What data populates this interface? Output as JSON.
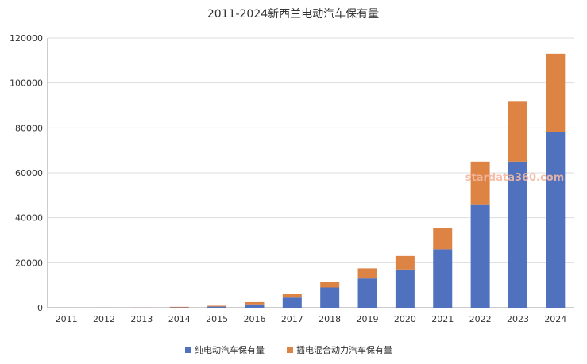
{
  "chart_data": {
    "type": "bar",
    "stacked": true,
    "title": "2011-2024新西兰电动汽车保有量",
    "xlabel": "",
    "ylabel": "",
    "categories": [
      "2011",
      "2012",
      "2013",
      "2014",
      "2015",
      "2016",
      "2017",
      "2018",
      "2019",
      "2020",
      "2021",
      "2022",
      "2023",
      "2024"
    ],
    "series": [
      {
        "name": "纯电动汽车保有量",
        "color": "#4f71be",
        "values": [
          10,
          30,
          80,
          150,
          500,
          1500,
          4500,
          9000,
          13000,
          17000,
          26000,
          46000,
          65000,
          78000
        ]
      },
      {
        "name": "插电混合动力汽车保有量",
        "color": "#dd8344",
        "values": [
          0,
          20,
          70,
          250,
          400,
          1000,
          1500,
          2500,
          4500,
          6000,
          9500,
          19000,
          27000,
          35000
        ]
      }
    ],
    "ylim": [
      0,
      120000
    ],
    "yticks": [
      "0",
      "20000",
      "40000",
      "60000",
      "80000",
      "100000",
      "120000"
    ],
    "grid": true,
    "legend_position": "bottom-center",
    "watermark": "stardata360.com"
  }
}
